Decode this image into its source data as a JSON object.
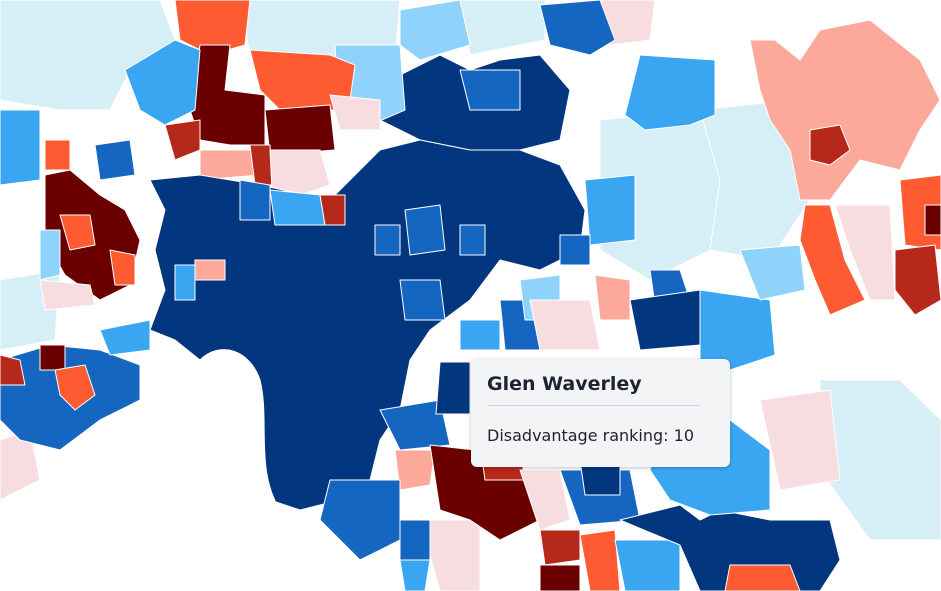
{
  "tooltip": {
    "suburb": "Glen Waverley",
    "metric_label": "Disadvantage ranking",
    "metric_value": "10",
    "metric_text": "Disadvantage ranking: 10"
  },
  "legend_colors": {
    "rank_1": "#6b0000",
    "rank_2": "#b5281a",
    "rank_3": "#ff5b33",
    "rank_4": "#fca99b",
    "rank_5": "#f8dde0",
    "rank_6": "#d6eef5",
    "rank_7": "#8fd2fb",
    "rank_8": "#3aa6f2",
    "rank_9": "#1466c0",
    "rank_10": "#02367f"
  },
  "highlighted_region": "Glen Waverley"
}
